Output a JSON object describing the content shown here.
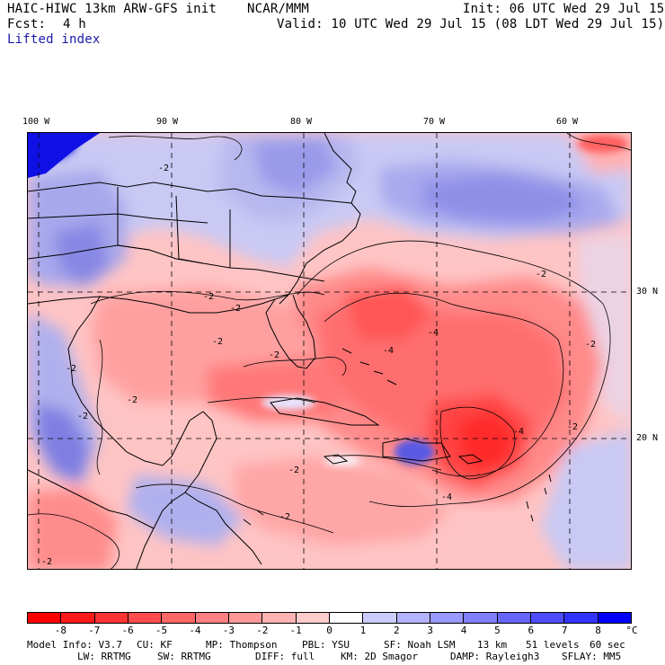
{
  "header": {
    "model": "HAIC-HIWC 13km ARW-GFS init",
    "org": "NCAR/MMM",
    "init": "Init: 06 UTC Wed 29 Jul 15",
    "fcst_label": "Fcst:",
    "fcst_value": "4 h",
    "valid": "Valid: 10 UTC Wed 29 Jul 15 (08 LDT Wed 29 Jul 15)",
    "field": "Lifted index"
  },
  "map": {
    "lon_labels": [
      "100 W",
      "90 W",
      "80 W",
      "70 W",
      "60 W"
    ],
    "lat_labels": [
      "30 N",
      "20 N"
    ],
    "contour_labels": [
      "-2",
      "-2",
      "-2",
      "-2",
      "-2",
      "-2",
      "-2",
      "-2",
      "-2",
      "-2",
      "-2",
      "-4",
      "-4",
      "-4",
      "-4",
      "-2",
      "-2",
      "-2"
    ]
  },
  "colorbar": {
    "unit": "°C",
    "ticks": [
      "-8",
      "-7",
      "-6",
      "-5",
      "-4",
      "-3",
      "-2",
      "-1",
      "0",
      "1",
      "2",
      "3",
      "4",
      "5",
      "6",
      "7",
      "8"
    ],
    "colors": [
      "#ff0000",
      "#ff1a1a",
      "#ff3333",
      "#ff4d4d",
      "#ff6666",
      "#ff8080",
      "#ff9999",
      "#ffb3b3",
      "#ffcccc",
      "#ffffff",
      "#ccccff",
      "#b3b3ff",
      "#9999ff",
      "#8080ff",
      "#6666ff",
      "#4d4dff",
      "#3333ff",
      "#0000ff"
    ]
  },
  "footer": {
    "line1": [
      "Model Info: V3.7",
      "CU: KF",
      "MP: Thompson",
      "PBL: YSU",
      "SF: Noah LSM",
      "13 km",
      "51 levels",
      "60 sec"
    ],
    "line2": [
      "LW: RRTMG",
      "SW: RRTMG",
      "DIFF: full",
      "KM: 2D Smagor",
      "DAMP: Rayleigh3",
      "SFLAY: MM5"
    ]
  }
}
